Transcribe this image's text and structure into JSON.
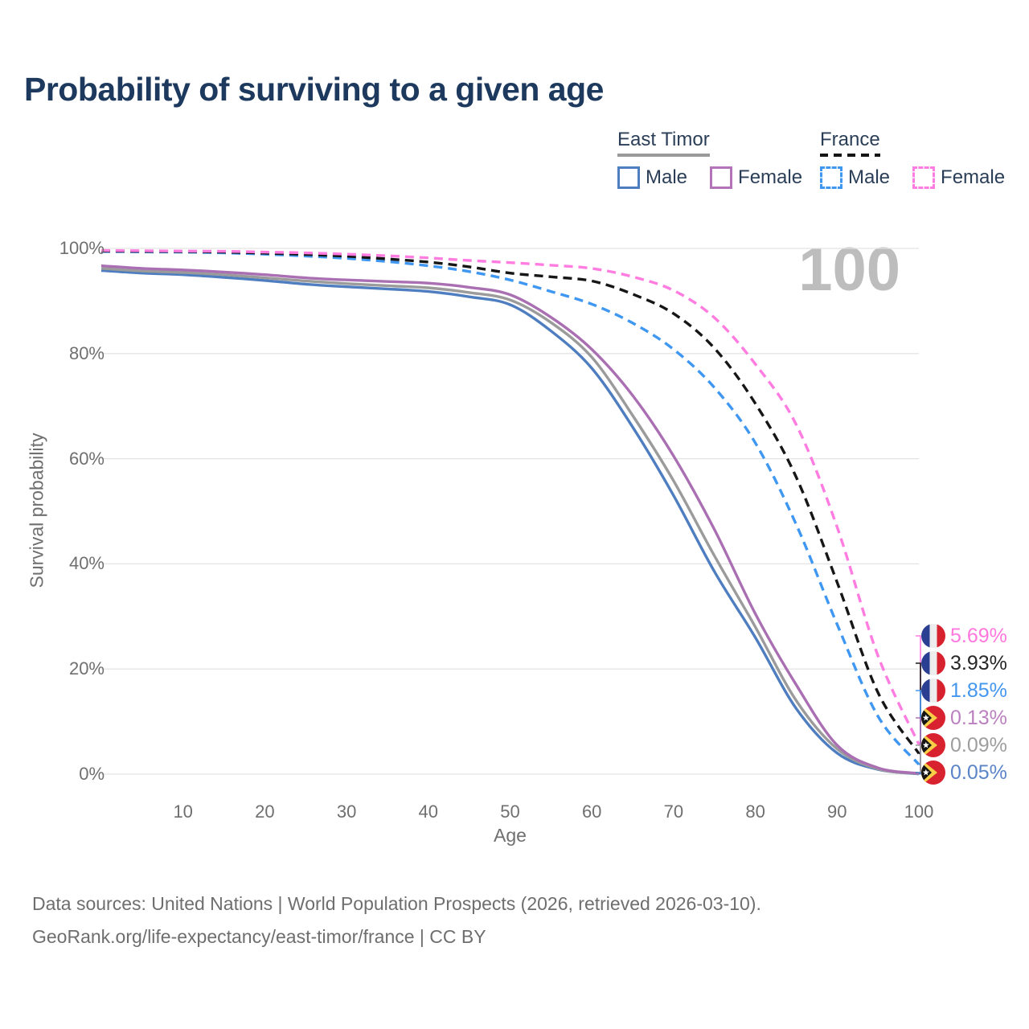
{
  "header": {
    "title": "Probability of surviving to a given age"
  },
  "legend": {
    "groups": [
      {
        "label": "East Timor",
        "line_style": "solid",
        "underline_color": "#9a9a9a",
        "items": [
          {
            "label": "Male",
            "color": "#4e7dc0"
          },
          {
            "label": "Female",
            "color": "#b273b9"
          }
        ]
      },
      {
        "label": "France",
        "line_style": "dashed",
        "underline_color": "#141414",
        "items": [
          {
            "label": "Male",
            "color": "#3f97f1"
          },
          {
            "label": "Female",
            "color": "#ff7ce0"
          }
        ]
      }
    ]
  },
  "chart_data": {
    "type": "line",
    "title": "Probability of surviving to a given age",
    "xlabel": "Age",
    "ylabel": "Survival probability",
    "xlim": [
      0,
      100
    ],
    "ylim": [
      0,
      100
    ],
    "grid": "horizontal",
    "watermark_age": "100",
    "x_ticks": [
      10,
      20,
      30,
      40,
      50,
      60,
      70,
      80,
      90,
      100
    ],
    "y_ticks": [
      {
        "value": 0,
        "label": "0%"
      },
      {
        "value": 20,
        "label": "20%"
      },
      {
        "value": 40,
        "label": "40%"
      },
      {
        "value": 60,
        "label": "60%"
      },
      {
        "value": 80,
        "label": "80%"
      },
      {
        "value": 100,
        "label": "100%"
      }
    ],
    "x": [
      0,
      5,
      10,
      15,
      20,
      25,
      30,
      35,
      40,
      45,
      50,
      55,
      60,
      65,
      70,
      75,
      80,
      85,
      90,
      95,
      100
    ],
    "series": [
      {
        "name": "East Timor — Male",
        "country": "East Timor",
        "sex": "male",
        "color": "#4e7dc0",
        "line_style": "solid",
        "flag": "east-timor",
        "end_label": "0.05%",
        "end_label_color": "#5b84c9",
        "values": [
          95.8,
          95.3,
          95.0,
          94.5,
          93.9,
          93.2,
          92.7,
          92.3,
          91.8,
          90.8,
          89.3,
          84.3,
          77.2,
          66.0,
          53.0,
          38.5,
          26.0,
          12.5,
          4.0,
          0.9,
          0.05
        ]
      },
      {
        "name": "East Timor",
        "country": "East Timor",
        "sex": "both",
        "color": "#9b9b9b",
        "line_style": "solid",
        "flag": "east-timor",
        "end_label": "0.09%",
        "end_label_color": "#9e9e9e",
        "values": [
          96.2,
          95.7,
          95.4,
          95.0,
          94.4,
          93.8,
          93.3,
          92.9,
          92.5,
          91.6,
          90.2,
          85.9,
          79.3,
          68.2,
          55.8,
          41.5,
          28.0,
          14.0,
          4.8,
          1.0,
          0.09
        ]
      },
      {
        "name": "East Timor — Female",
        "country": "East Timor",
        "sex": "female",
        "color": "#a96fb2",
        "line_style": "solid",
        "flag": "east-timor",
        "end_label": "0.13%",
        "end_label_color": "#bb80c0",
        "values": [
          96.7,
          96.2,
          95.9,
          95.5,
          95.0,
          94.4,
          94.0,
          93.7,
          93.4,
          92.6,
          91.2,
          86.9,
          80.8,
          72.0,
          60.5,
          46.5,
          30.5,
          17.0,
          5.5,
          1.2,
          0.13
        ]
      },
      {
        "name": "France — Male",
        "country": "France",
        "sex": "male",
        "color": "#3f97f1",
        "line_style": "dashed",
        "flag": "france",
        "end_label": "1.85%",
        "end_label_color": "#4496ef",
        "values": [
          99.4,
          99.35,
          99.3,
          99.15,
          98.9,
          98.55,
          98.1,
          97.5,
          96.7,
          95.6,
          94.0,
          91.8,
          89.4,
          85.8,
          80.8,
          73.5,
          63.0,
          47.5,
          28.5,
          11.0,
          1.85
        ]
      },
      {
        "name": "France",
        "country": "France",
        "sex": "both",
        "color": "#161616",
        "line_style": "dashed",
        "flag": "france",
        "end_label": "3.93%",
        "end_label_color": "#262626",
        "values": [
          99.5,
          99.45,
          99.4,
          99.3,
          99.1,
          98.85,
          98.5,
          98.0,
          97.4,
          96.5,
          95.3,
          94.6,
          93.8,
          91.3,
          87.6,
          81.0,
          70.5,
          56.5,
          36.5,
          15.5,
          3.93
        ]
      },
      {
        "name": "France — Female",
        "country": "France",
        "sex": "female",
        "color": "#ff7ce0",
        "line_style": "dashed",
        "flag": "france",
        "end_label": "5.69%",
        "end_label_color": "#ff77dd",
        "values": [
          99.6,
          99.55,
          99.5,
          99.45,
          99.3,
          99.15,
          98.9,
          98.6,
          98.2,
          97.7,
          97.3,
          96.8,
          96.2,
          94.6,
          92.0,
          86.8,
          78.0,
          66.5,
          47.0,
          22.5,
          5.69
        ]
      }
    ]
  },
  "colors": {
    "title": "#1d3a5e",
    "gridline": "#e4e4e4",
    "axis_text": "#6f6f6f",
    "watermark": "#bdbdbd",
    "flag_france_blue": "#2b3f92",
    "flag_france_red": "#d7212e",
    "flag_east_timor_red": "#d8222f",
    "flag_east_timor_yellow": "#f7ce46"
  },
  "footer": {
    "line1": "Data sources: United Nations | World Population Prospects (2026, retrieved 2026-03-10).",
    "line2": "GeoRank.org/life-expectancy/east-timor/france | CC BY"
  }
}
